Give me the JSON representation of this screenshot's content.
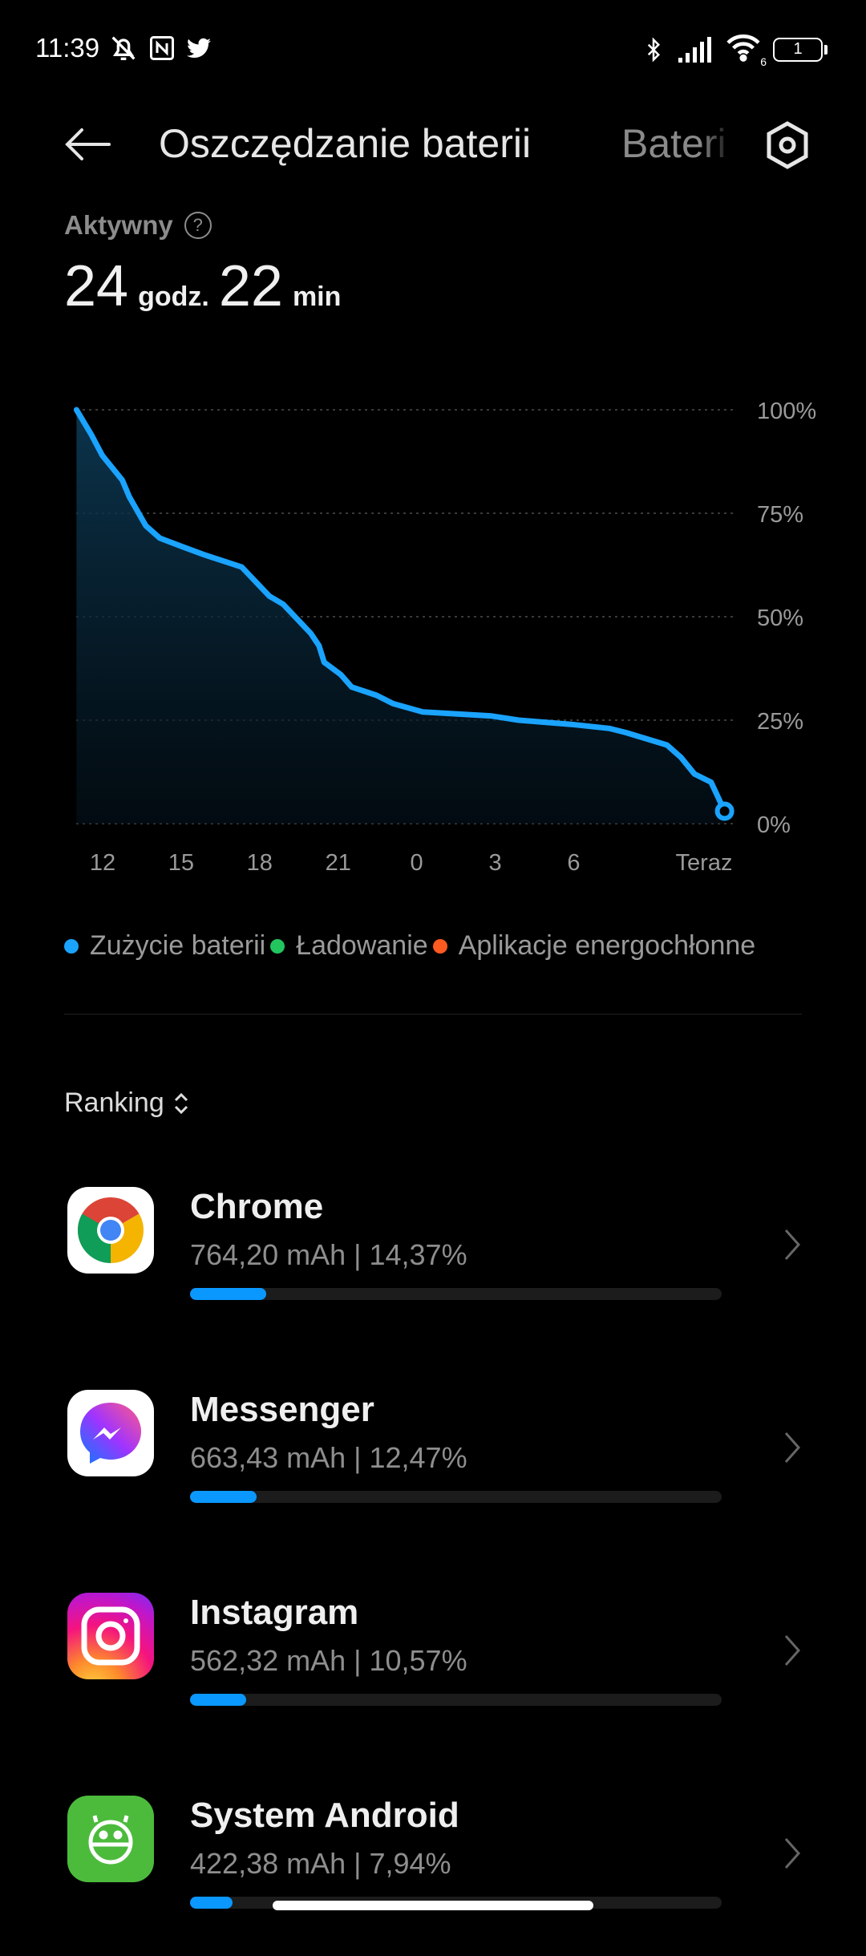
{
  "status_bar": {
    "time": "11:39",
    "battery_level": "1",
    "wifi_label": "6",
    "icons": [
      "mute-bell-icon",
      "nfc-icon",
      "twitter-icon",
      "bluetooth-icon",
      "signal-icon",
      "wifi-icon",
      "battery-icon"
    ]
  },
  "header": {
    "title": "Oszczędzanie baterii",
    "second_tab": "Bateri",
    "back_icon": "arrow-left-icon",
    "settings_icon": "gear-hexagon-icon"
  },
  "summary": {
    "label": "Aktywny",
    "hours": "24",
    "hours_unit": "godz.",
    "minutes": "22",
    "minutes_unit": "min"
  },
  "chart_data": {
    "type": "area",
    "y_ticks": [
      "100%",
      "75%",
      "50%",
      "25%",
      "0%"
    ],
    "ylim": [
      0,
      100
    ],
    "x_ticks": [
      "12",
      "15",
      "18",
      "21",
      "0",
      "3",
      "6",
      "Teraz"
    ],
    "grid": true,
    "series": [
      {
        "name": "Zużycie baterii",
        "color": "#1aa3ff",
        "x": [
          "11:00",
          "11:34",
          "11:59",
          "12:45",
          "13:01",
          "13:39",
          "14:11",
          "15:01",
          "15:52",
          "17:19",
          "18:22",
          "18:54",
          "19:57",
          "20:16",
          "20:28",
          "21:06",
          "21:31",
          "22:28",
          "23:06",
          "00:14",
          "02:52",
          "03:54",
          "05:54",
          "07:22",
          "08:00",
          "09:34",
          "10:06",
          "10:37",
          "11:15",
          "11:46"
        ],
        "y": [
          100,
          94,
          89,
          83,
          79,
          72,
          69,
          67,
          65,
          62,
          55,
          53,
          46,
          43,
          39,
          36,
          33,
          31,
          29,
          27,
          26,
          25,
          24,
          23,
          22,
          19,
          16,
          12,
          10,
          3
        ]
      }
    ]
  },
  "legend": [
    {
      "label": "Zużycie baterii",
      "color": "#1aa3ff"
    },
    {
      "label": "Ładowanie",
      "color": "#22c55e"
    },
    {
      "label": "Aplikacje energochłonne",
      "color": "#ff5a1f"
    }
  ],
  "ranking": {
    "label": "Ranking"
  },
  "apps": [
    {
      "name": "Chrome",
      "usage": "764,20 mAh | 14,37%",
      "percent": 14.37,
      "icon": "chrome-icon"
    },
    {
      "name": "Messenger",
      "usage": "663,43 mAh | 12,47%",
      "percent": 12.47,
      "icon": "messenger-icon"
    },
    {
      "name": "Instagram",
      "usage": "562,32 mAh | 10,57%",
      "percent": 10.57,
      "icon": "instagram-icon"
    },
    {
      "name": "System Android",
      "usage": "422,38 mAh | 7,94%",
      "percent": 7.94,
      "icon": "android-system-icon"
    }
  ]
}
